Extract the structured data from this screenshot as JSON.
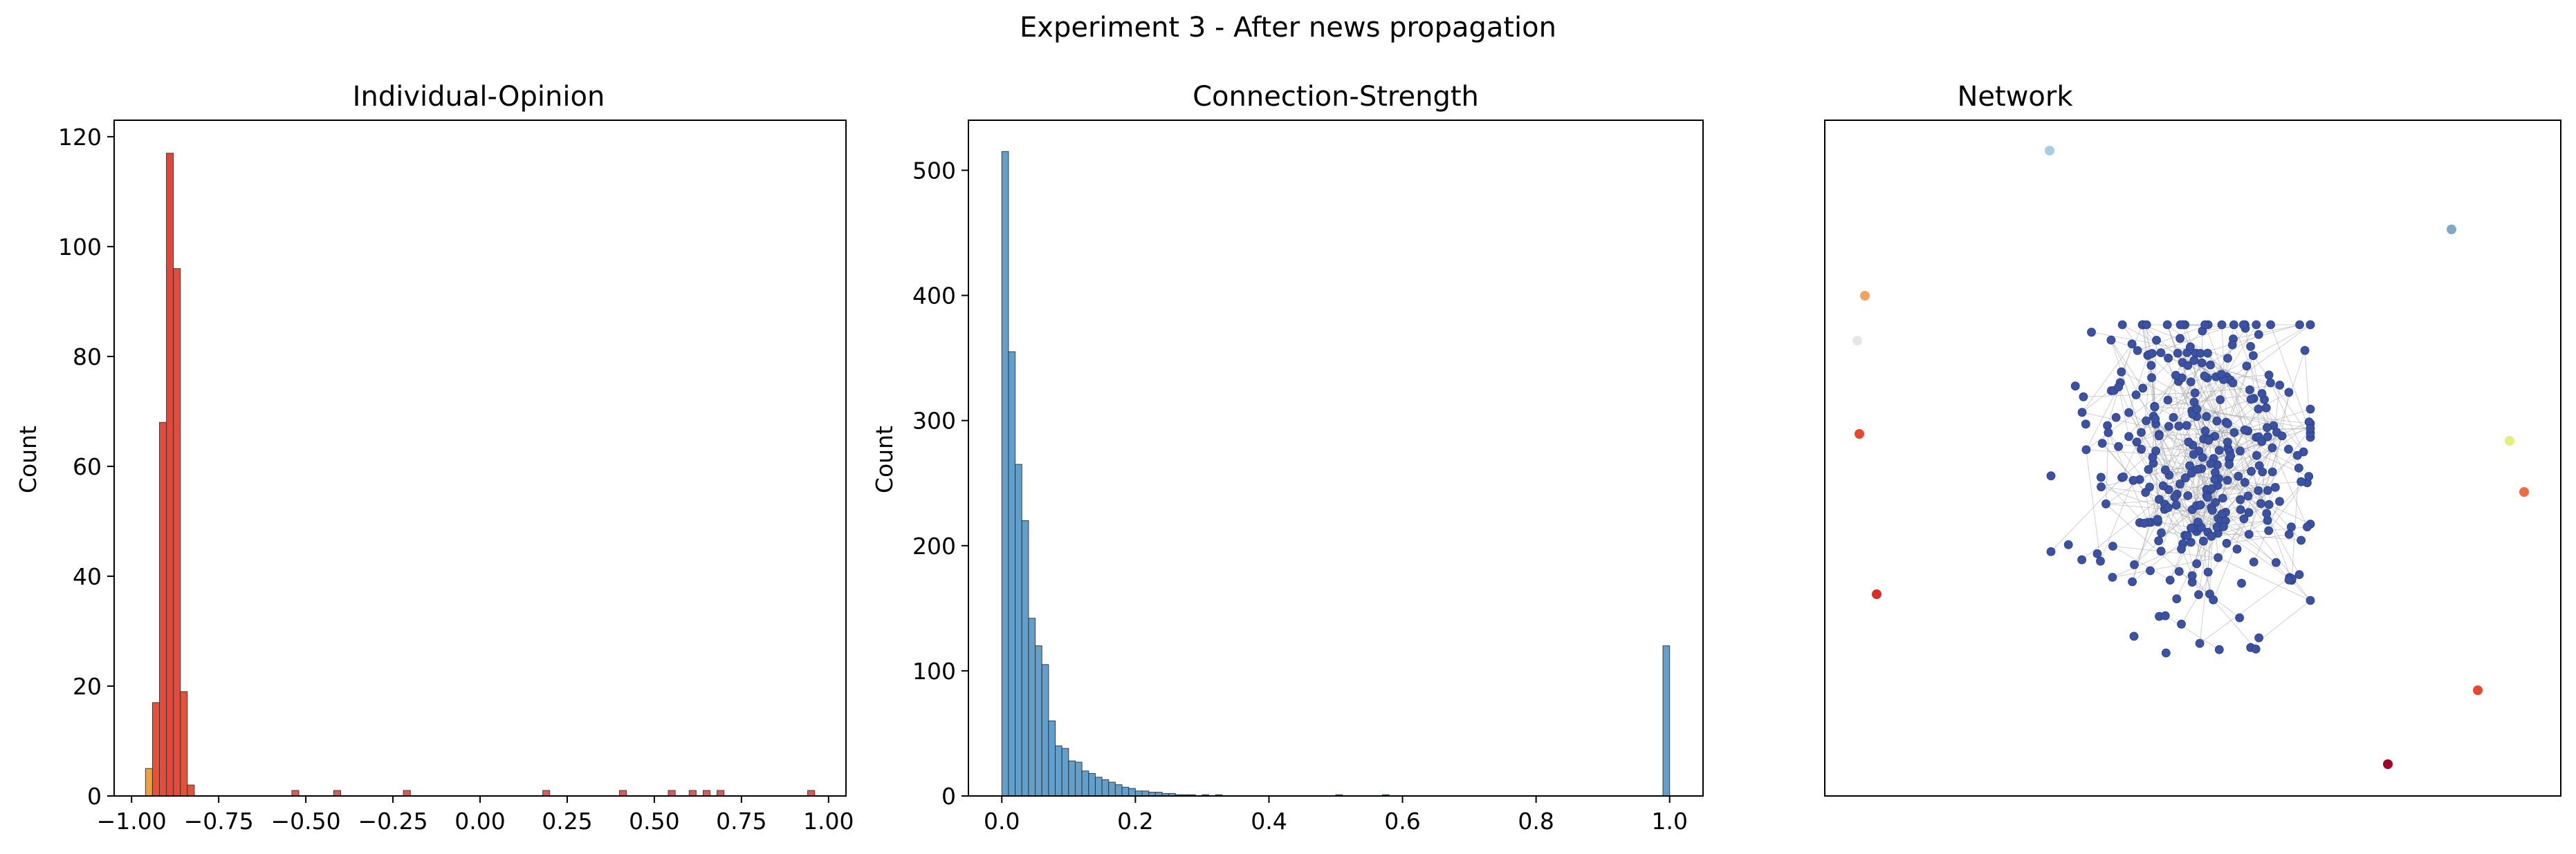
{
  "figure": {
    "suptitle": "Experiment 3 - After news propagation"
  },
  "chart_data": [
    {
      "type": "histogram",
      "title": "Individual-Opinion",
      "xlabel": "",
      "ylabel": "Count",
      "xlim": [
        -1.05,
        1.05
      ],
      "ylim": [
        0,
        123
      ],
      "xticks": [
        -1.0,
        -0.75,
        -0.5,
        -0.25,
        0.0,
        0.25,
        0.5,
        0.75,
        1.0
      ],
      "xtick_labels": [
        "−1.00",
        "−0.75",
        "−0.50",
        "−0.25",
        "0.00",
        "0.25",
        "0.50",
        "0.75",
        "1.00"
      ],
      "yticks": [
        0,
        20,
        40,
        60,
        80,
        100,
        120
      ],
      "ytick_labels": [
        "0",
        "20",
        "40",
        "60",
        "80",
        "100",
        "120"
      ],
      "bin_width": 0.02,
      "bins": [
        {
          "x": -0.95,
          "count": 5,
          "color": "#f29a2e"
        },
        {
          "x": -0.93,
          "count": 17,
          "color": "#e8472e"
        },
        {
          "x": -0.91,
          "count": 68,
          "color": "#e8402e"
        },
        {
          "x": -0.89,
          "count": 117,
          "color": "#e83a2e"
        },
        {
          "x": -0.87,
          "count": 96,
          "color": "#e8402e"
        },
        {
          "x": -0.85,
          "count": 19,
          "color": "#e8472e"
        },
        {
          "x": -0.83,
          "count": 2,
          "color": "#e8472e"
        },
        {
          "x": -0.53,
          "count": 1,
          "color": "#d9534f"
        },
        {
          "x": -0.41,
          "count": 1,
          "color": "#d9534f"
        },
        {
          "x": -0.21,
          "count": 1,
          "color": "#d9534f"
        },
        {
          "x": 0.19,
          "count": 1,
          "color": "#d9534f"
        },
        {
          "x": 0.41,
          "count": 1,
          "color": "#d9534f"
        },
        {
          "x": 0.55,
          "count": 1,
          "color": "#d9534f"
        },
        {
          "x": 0.61,
          "count": 1,
          "color": "#d9534f"
        },
        {
          "x": 0.65,
          "count": 1,
          "color": "#d9534f"
        },
        {
          "x": 0.69,
          "count": 1,
          "color": "#d9534f"
        },
        {
          "x": 0.95,
          "count": 1,
          "color": "#d9534f"
        }
      ]
    },
    {
      "type": "histogram",
      "title": "Connection-Strength",
      "xlabel": "",
      "ylabel": "Count",
      "xlim": [
        -0.05,
        1.05
      ],
      "ylim": [
        0,
        540
      ],
      "xticks": [
        0.0,
        0.2,
        0.4,
        0.6,
        0.8,
        1.0
      ],
      "xtick_labels": [
        "0.0",
        "0.2",
        "0.4",
        "0.6",
        "0.8",
        "1.0"
      ],
      "yticks": [
        0,
        100,
        200,
        300,
        400,
        500
      ],
      "ytick_labels": [
        "0",
        "100",
        "200",
        "300",
        "400",
        "500"
      ],
      "bin_width": 0.01,
      "color": "#5b9ac9",
      "bins": [
        {
          "x": 0.005,
          "count": 515
        },
        {
          "x": 0.015,
          "count": 355
        },
        {
          "x": 0.025,
          "count": 265
        },
        {
          "x": 0.035,
          "count": 220
        },
        {
          "x": 0.045,
          "count": 142
        },
        {
          "x": 0.055,
          "count": 120
        },
        {
          "x": 0.065,
          "count": 105
        },
        {
          "x": 0.075,
          "count": 60
        },
        {
          "x": 0.085,
          "count": 40
        },
        {
          "x": 0.095,
          "count": 38
        },
        {
          "x": 0.105,
          "count": 28
        },
        {
          "x": 0.115,
          "count": 27
        },
        {
          "x": 0.125,
          "count": 20
        },
        {
          "x": 0.135,
          "count": 18
        },
        {
          "x": 0.145,
          "count": 15
        },
        {
          "x": 0.155,
          "count": 13
        },
        {
          "x": 0.165,
          "count": 11
        },
        {
          "x": 0.175,
          "count": 9
        },
        {
          "x": 0.185,
          "count": 7
        },
        {
          "x": 0.195,
          "count": 6
        },
        {
          "x": 0.205,
          "count": 4
        },
        {
          "x": 0.215,
          "count": 4
        },
        {
          "x": 0.225,
          "count": 3
        },
        {
          "x": 0.235,
          "count": 3
        },
        {
          "x": 0.245,
          "count": 2
        },
        {
          "x": 0.255,
          "count": 2
        },
        {
          "x": 0.265,
          "count": 1
        },
        {
          "x": 0.275,
          "count": 1
        },
        {
          "x": 0.285,
          "count": 1
        },
        {
          "x": 0.305,
          "count": 1
        },
        {
          "x": 0.325,
          "count": 1
        },
        {
          "x": 0.505,
          "count": 1
        },
        {
          "x": 0.575,
          "count": 1
        },
        {
          "x": 0.995,
          "count": 120
        }
      ]
    },
    {
      "type": "network",
      "title": "Network",
      "node_color_main": "#3b52a3",
      "edge_color": "#999999"
    }
  ]
}
